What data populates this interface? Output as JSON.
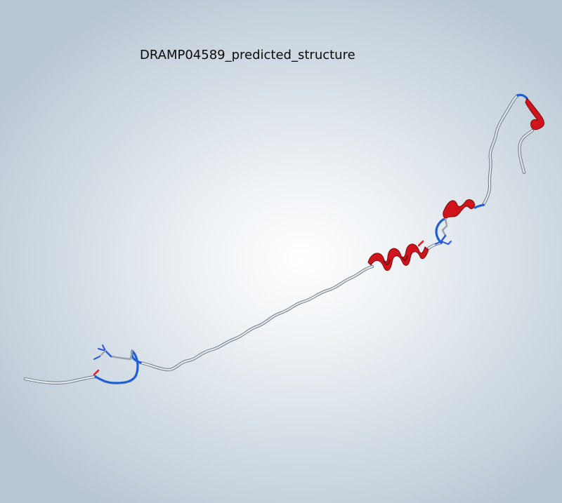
{
  "viewer": {
    "title": "DRAMP04589_predicted_structure"
  },
  "structure": {
    "colors": {
      "coil": "#dfe6ec",
      "coil_edge": "#6f7c86",
      "helix": "#d0141c",
      "helix_dark": "#7a0c10",
      "turn": "#1f5fd0",
      "carbon": "#9aa3aa",
      "nitrogen": "#2a55e8",
      "oxygen": "#e02020"
    }
  }
}
